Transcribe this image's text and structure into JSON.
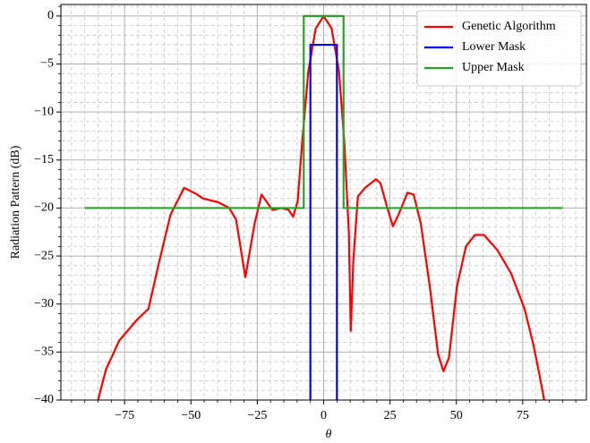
{
  "chart_data": {
    "type": "line",
    "xlabel": "θ",
    "ylabel": "Radiation Pattern (dB)",
    "xlim": [
      -99,
      99
    ],
    "ylim": [
      -40,
      1.2
    ],
    "xticks": [
      {
        "value": -75,
        "label": "−75"
      },
      {
        "value": -50,
        "label": "−50"
      },
      {
        "value": -25,
        "label": "−25"
      },
      0,
      25,
      50,
      75
    ],
    "yticks": [
      0,
      {
        "value": -5,
        "label": "−5"
      },
      {
        "value": -10,
        "label": "−10"
      },
      {
        "value": -15,
        "label": "−15"
      },
      {
        "value": -20,
        "label": "−20"
      },
      {
        "value": -25,
        "label": "−25"
      },
      {
        "value": -30,
        "label": "−30"
      },
      {
        "value": -35,
        "label": "−35"
      },
      {
        "value": -40,
        "label": "−40"
      }
    ],
    "xminorticks": [
      -95,
      -90,
      -85,
      -80,
      -70,
      -65,
      -60,
      -55,
      -45,
      -40,
      -35,
      -30,
      -20,
      -15,
      -10,
      -5,
      5,
      10,
      15,
      20,
      30,
      35,
      40,
      45,
      55,
      60,
      65,
      70,
      80,
      85,
      90,
      95
    ],
    "yminorticks": [
      -39,
      -38,
      -37,
      -36,
      -34,
      -33,
      -32,
      -31,
      -29,
      -28,
      -27,
      -26,
      -24,
      -23,
      -22,
      -21,
      -19,
      -18,
      -17,
      -16,
      -14,
      -13,
      -12,
      -11,
      -9,
      -8,
      -7,
      -6,
      -4,
      -3,
      -2,
      -1,
      1
    ],
    "grid": true,
    "minor_grid": true,
    "legend": "upper right",
    "series": [
      {
        "name": "Genetic Algorithm",
        "color": "#ff0000",
        "x": [
          -85,
          -82,
          -77,
          -70.2,
          -66,
          -61.8,
          -57.7,
          -52.6,
          -48.2,
          -45.5,
          -39.7,
          -35.6,
          -33,
          -29.5,
          -26,
          -23.4,
          -19.3,
          -16,
          -13.2,
          -11.5,
          -9.8,
          -8.1,
          -5.8,
          -3,
          0,
          3,
          5.8,
          7.8,
          9.5,
          10.2,
          11.2,
          12.9,
          15.6,
          19.7,
          21.4,
          23.8,
          26.1,
          28.2,
          31.6,
          33.9,
          36.6,
          40,
          43.1,
          45.1,
          47.2,
          50.2,
          53.6,
          57,
          60.4,
          65.5,
          70.6,
          75.7,
          79,
          81.4,
          83.1
        ],
        "values": [
          -40,
          -36.8,
          -33.8,
          -31.6,
          -30.5,
          -25.4,
          -20.7,
          -17.9,
          -18.5,
          -19,
          -19.4,
          -20,
          -21.2,
          -27.2,
          -21.6,
          -18.6,
          -20.2,
          -20,
          -20.2,
          -20.9,
          -19.3,
          -13.2,
          -5.8,
          -1.3,
          0,
          -1.3,
          -5.8,
          -13.2,
          -22.6,
          -32.8,
          -25.4,
          -18.8,
          -17.9,
          -17,
          -17.4,
          -19.8,
          -21.9,
          -20.7,
          -18.4,
          -18.6,
          -21.6,
          -28.2,
          -35.2,
          -37,
          -35.6,
          -28.2,
          -24,
          -22.8,
          -22.8,
          -24.4,
          -26.8,
          -30.5,
          -34.2,
          -37.5,
          -40
        ]
      },
      {
        "name": "Lower Mask",
        "color": "#0000ff",
        "x": [
          -5,
          -5,
          5,
          5
        ],
        "values": [
          -40,
          -3,
          -3,
          -40
        ]
      },
      {
        "name": "Upper Mask",
        "color": "#2ca02c",
        "x": [
          -90,
          -7.5,
          -7.5,
          7.5,
          7.5,
          90
        ],
        "values": [
          -20,
          -20,
          0,
          0,
          -20,
          -20
        ]
      }
    ]
  }
}
